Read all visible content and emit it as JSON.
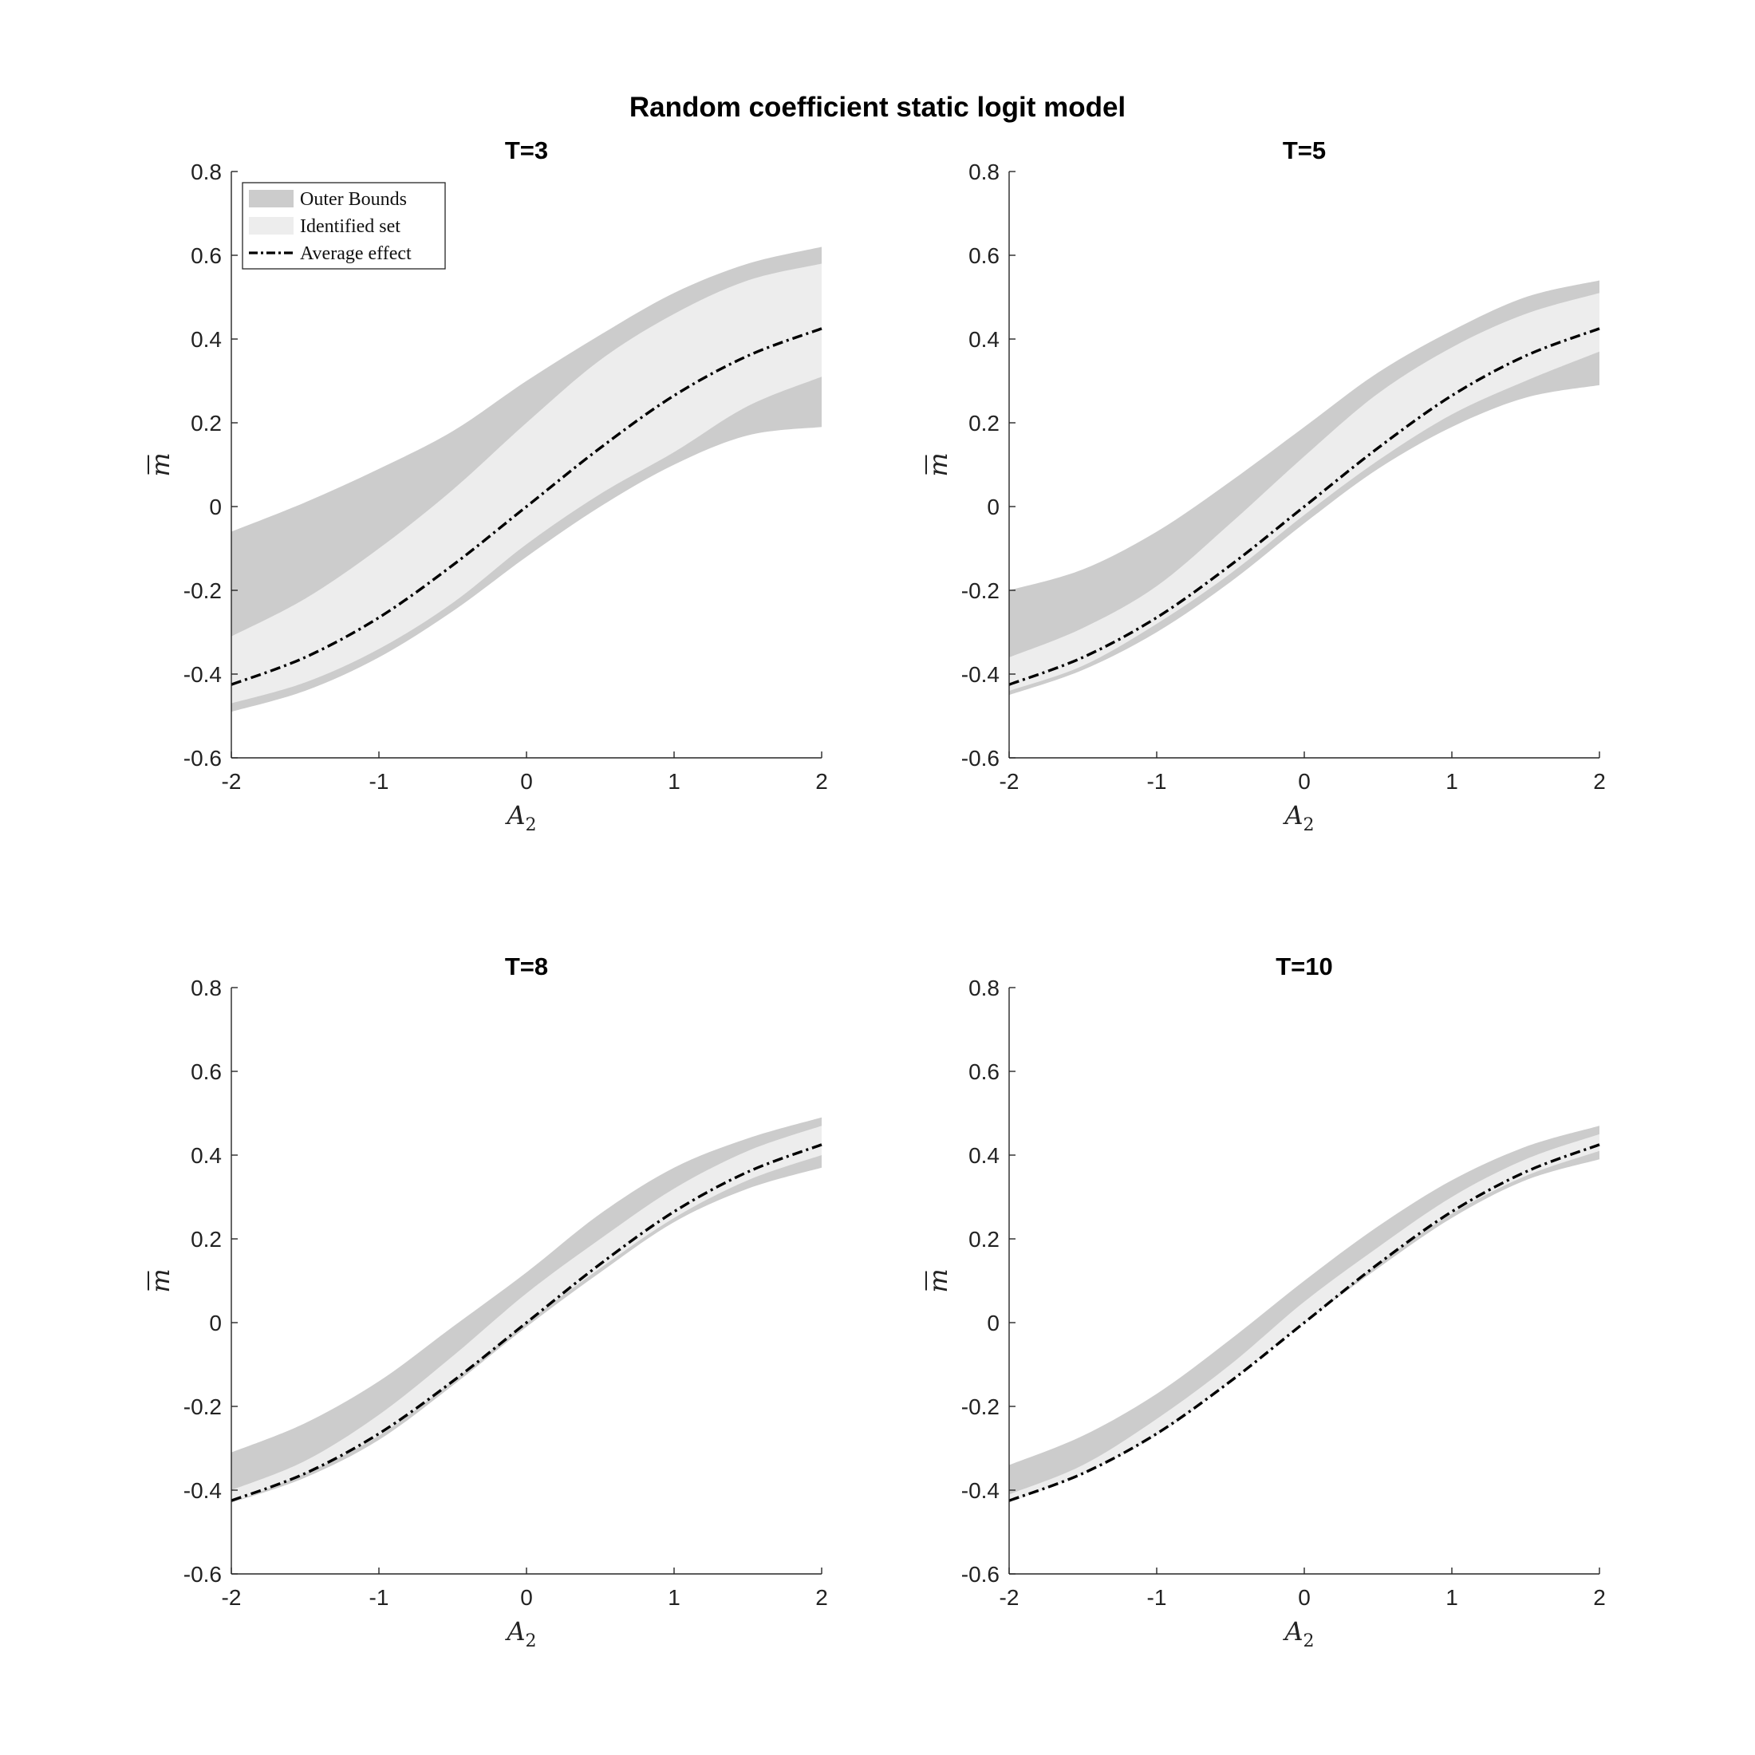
{
  "figure": {
    "title": "Random coefficient static logit model"
  },
  "colors": {
    "outer_bounds": "#cccccc",
    "identified_set": "#ededed",
    "average_effect": "#000000"
  },
  "legend": {
    "location": "top-left",
    "entries": [
      "Outer Bounds",
      "Identified set",
      "Average effect"
    ]
  },
  "chart_data": [
    {
      "type": "area",
      "title": "T=3",
      "xlabel": "A",
      "xlabel_sub": "2",
      "ylabel": "m",
      "ylabel_overline": true,
      "xlim": [
        -2,
        2
      ],
      "ylim": [
        -0.6,
        0.8
      ],
      "xticks": [
        "-2",
        "-1",
        "0",
        "1",
        "2"
      ],
      "yticks": [
        "-0.6",
        "-0.4",
        "-0.2",
        "0",
        "0.2",
        "0.4",
        "0.6",
        "0.8"
      ],
      "grid": false,
      "x": [
        -2,
        -1.5,
        -1,
        -0.5,
        0,
        0.5,
        1,
        1.5,
        2
      ],
      "series": [
        {
          "name": "Outer Bounds",
          "kind": "band",
          "lower": [
            -0.49,
            -0.44,
            -0.36,
            -0.25,
            -0.12,
            0,
            0.1,
            0.17,
            0.19
          ],
          "upper": [
            -0.06,
            0.01,
            0.09,
            0.18,
            0.3,
            0.41,
            0.51,
            0.58,
            0.62
          ]
        },
        {
          "name": "Identified set",
          "kind": "band",
          "lower": [
            -0.47,
            -0.42,
            -0.34,
            -0.23,
            -0.09,
            0.03,
            0.13,
            0.24,
            0.31
          ],
          "upper": [
            -0.31,
            -0.22,
            -0.1,
            0.04,
            0.2,
            0.35,
            0.46,
            0.54,
            0.58
          ]
        },
        {
          "name": "Average effect",
          "kind": "line",
          "values": [
            -0.425,
            -0.36,
            -0.265,
            -0.14,
            0,
            0.14,
            0.265,
            0.36,
            0.425
          ]
        }
      ]
    },
    {
      "type": "area",
      "title": "T=5",
      "xlabel": "A",
      "xlabel_sub": "2",
      "ylabel": "m",
      "ylabel_overline": true,
      "xlim": [
        -2,
        2
      ],
      "ylim": [
        -0.6,
        0.8
      ],
      "xticks": [
        "-2",
        "-1",
        "0",
        "1",
        "2"
      ],
      "yticks": [
        "-0.6",
        "-0.4",
        "-0.2",
        "0",
        "0.2",
        "0.4",
        "0.6",
        "0.8"
      ],
      "grid": false,
      "x": [
        -2,
        -1.5,
        -1,
        -0.5,
        0,
        0.5,
        1,
        1.5,
        2
      ],
      "series": [
        {
          "name": "Outer Bounds",
          "kind": "band",
          "lower": [
            -0.45,
            -0.39,
            -0.3,
            -0.18,
            -0.04,
            0.09,
            0.19,
            0.26,
            0.29
          ],
          "upper": [
            -0.2,
            -0.15,
            -0.06,
            0.06,
            0.19,
            0.32,
            0.42,
            0.5,
            0.54
          ]
        },
        {
          "name": "Identified set",
          "kind": "band",
          "lower": [
            -0.44,
            -0.38,
            -0.28,
            -0.16,
            -0.02,
            0.11,
            0.22,
            0.3,
            0.37
          ],
          "upper": [
            -0.36,
            -0.29,
            -0.19,
            -0.04,
            0.12,
            0.27,
            0.38,
            0.46,
            0.51
          ]
        },
        {
          "name": "Average effect",
          "kind": "line",
          "values": [
            -0.425,
            -0.36,
            -0.265,
            -0.14,
            0,
            0.14,
            0.265,
            0.36,
            0.425
          ]
        }
      ]
    },
    {
      "type": "area",
      "title": "T=8",
      "xlabel": "A",
      "xlabel_sub": "2",
      "ylabel": "m",
      "ylabel_overline": true,
      "xlim": [
        -2,
        2
      ],
      "ylim": [
        -0.6,
        0.8
      ],
      "xticks": [
        "-2",
        "-1",
        "0",
        "1",
        "2"
      ],
      "yticks": [
        "-0.6",
        "-0.4",
        "-0.2",
        "0",
        "0.2",
        "0.4",
        "0.6",
        "0.8"
      ],
      "grid": false,
      "x": [
        -2,
        -1.5,
        -1,
        -0.5,
        0,
        0.5,
        1,
        1.5,
        2
      ],
      "series": [
        {
          "name": "Outer Bounds",
          "kind": "band",
          "lower": [
            -0.43,
            -0.37,
            -0.28,
            -0.15,
            -0.01,
            0.12,
            0.24,
            0.32,
            0.37
          ],
          "upper": [
            -0.31,
            -0.24,
            -0.14,
            -0.01,
            0.12,
            0.26,
            0.37,
            0.44,
            0.49
          ]
        },
        {
          "name": "Identified set",
          "kind": "band",
          "lower": [
            -0.43,
            -0.36,
            -0.27,
            -0.14,
            0,
            0.13,
            0.25,
            0.34,
            0.4
          ],
          "upper": [
            -0.4,
            -0.33,
            -0.22,
            -0.08,
            0.07,
            0.2,
            0.32,
            0.41,
            0.47
          ]
        },
        {
          "name": "Average effect",
          "kind": "line",
          "values": [
            -0.425,
            -0.36,
            -0.265,
            -0.14,
            0,
            0.14,
            0.265,
            0.36,
            0.425
          ]
        }
      ]
    },
    {
      "type": "area",
      "title": "T=10",
      "xlabel": "A",
      "xlabel_sub": "2",
      "ylabel": "m",
      "ylabel_overline": true,
      "xlim": [
        -2,
        2
      ],
      "ylim": [
        -0.6,
        0.8
      ],
      "xticks": [
        "-2",
        "-1",
        "0",
        "1",
        "2"
      ],
      "yticks": [
        "-0.6",
        "-0.4",
        "-0.2",
        "0",
        "0.2",
        "0.4",
        "0.6",
        "0.8"
      ],
      "grid": false,
      "x": [
        -2,
        -1.5,
        -1,
        -0.5,
        0,
        0.5,
        1,
        1.5,
        2
      ],
      "series": [
        {
          "name": "Outer Bounds",
          "kind": "band",
          "lower": [
            -0.43,
            -0.36,
            -0.27,
            -0.14,
            0,
            0.13,
            0.25,
            0.34,
            0.39
          ],
          "upper": [
            -0.34,
            -0.27,
            -0.17,
            -0.04,
            0.1,
            0.23,
            0.34,
            0.42,
            0.47
          ]
        },
        {
          "name": "Identified set",
          "kind": "band",
          "lower": [
            -0.43,
            -0.36,
            -0.27,
            -0.14,
            0,
            0.14,
            0.26,
            0.35,
            0.41
          ],
          "upper": [
            -0.41,
            -0.34,
            -0.23,
            -0.1,
            0.05,
            0.18,
            0.3,
            0.39,
            0.45
          ]
        },
        {
          "name": "Average effect",
          "kind": "line",
          "values": [
            -0.425,
            -0.36,
            -0.265,
            -0.14,
            0,
            0.14,
            0.265,
            0.36,
            0.425
          ]
        }
      ]
    }
  ]
}
